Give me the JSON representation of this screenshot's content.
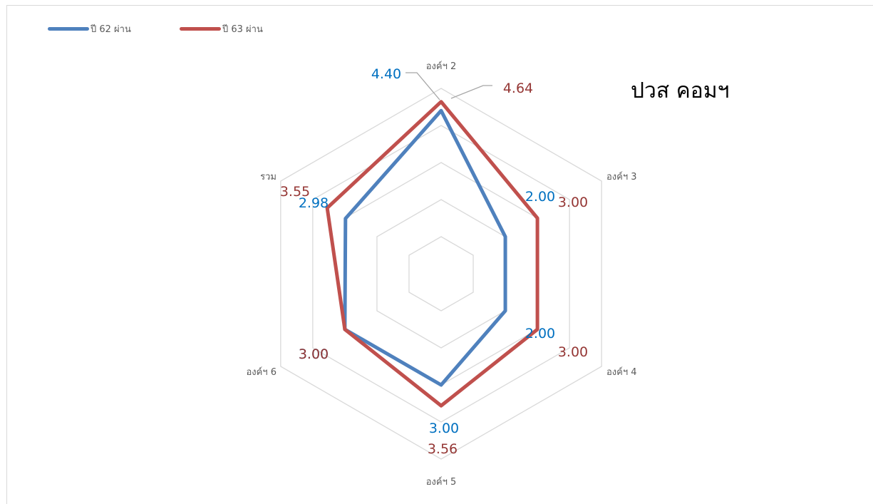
{
  "chart_data": {
    "type": "radar",
    "title": "ปวส  คอมฯ",
    "categories": [
      "องค์ฯ 2",
      "องค์ฯ 3",
      "องค์ฯ 4",
      "องค์ฯ 5",
      "องค์ฯ 6",
      "รวม"
    ],
    "rlim": [
      0,
      5
    ],
    "grid": true,
    "legend": "top-left",
    "series": [
      {
        "name": "ปี 62  ผ่าน",
        "color": "#4f81bd",
        "label_color": "#0070c0",
        "values": [
          4.4,
          2.0,
          2.0,
          3.0,
          3.0,
          2.98
        ],
        "labels": [
          "4.40",
          "2.00",
          "2.00",
          "3.00",
          "3.00",
          "2.98"
        ]
      },
      {
        "name": "ปี 63  ผ่าน",
        "color": "#c0504d",
        "label_color": "#953735",
        "values": [
          4.64,
          3.0,
          3.0,
          3.56,
          3.0,
          3.55
        ],
        "labels": [
          "4.64",
          "3.00",
          "3.00",
          "3.56",
          "3.00",
          "3.55"
        ]
      }
    ]
  }
}
